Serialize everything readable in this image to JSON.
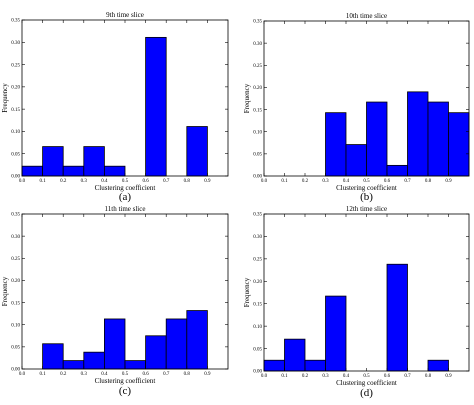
{
  "chart_data": [
    {
      "type": "bar",
      "panel_label": "(a)",
      "title": "9th time slice",
      "xlabel": "Clustering coefficient",
      "ylabel": "Frequency",
      "x_ticks": [
        "0.0",
        "0.1",
        "0.2",
        "0.3",
        "0.4",
        "0.5",
        "0.6",
        "0.7",
        "0.8",
        "0.9"
      ],
      "y_ticks": [
        "0.00",
        "0.05",
        "0.10",
        "0.15",
        "0.20",
        "0.25",
        "0.30",
        "0.35"
      ],
      "bin_edges": [
        0.0,
        0.1,
        0.2,
        0.3,
        0.4,
        0.5,
        0.6,
        0.7,
        0.8,
        0.9,
        1.0
      ],
      "values": [
        0.022,
        0.066,
        0.022,
        0.066,
        0.022,
        0.0,
        0.311,
        0.0,
        0.111,
        0.0
      ],
      "ylim": [
        0,
        0.35
      ],
      "bar_color": "#0000ff"
    },
    {
      "type": "bar",
      "panel_label": "(b)",
      "title": "10th time slice",
      "xlabel": "Clustering coefficient",
      "ylabel": "Frequency",
      "x_ticks": [
        "0.0",
        "0.1",
        "0.2",
        "0.3",
        "0.4",
        "0.5",
        "0.6",
        "0.7",
        "0.8",
        "0.9"
      ],
      "y_ticks": [
        "0.00",
        "0.05",
        "0.10",
        "0.15",
        "0.20",
        "0.25",
        "0.30",
        "0.35"
      ],
      "bin_edges": [
        0.0,
        0.1,
        0.2,
        0.3,
        0.4,
        0.5,
        0.6,
        0.7,
        0.8,
        0.9,
        1.0
      ],
      "values": [
        0.0,
        0.0,
        0.0,
        0.143,
        0.071,
        0.167,
        0.024,
        0.19,
        0.167,
        0.143
      ],
      "ylim": [
        0,
        0.35
      ],
      "bar_color": "#0000ff"
    },
    {
      "type": "bar",
      "panel_label": "(c)",
      "title": "11th time slice",
      "xlabel": "Clustering coefficient",
      "ylabel": "Frequency",
      "x_ticks": [
        "0.0",
        "0.1",
        "0.2",
        "0.3",
        "0.4",
        "0.5",
        "0.6",
        "0.7",
        "0.8",
        "0.9"
      ],
      "y_ticks": [
        "0.00",
        "0.05",
        "0.10",
        "0.15",
        "0.20",
        "0.25",
        "0.30",
        "0.35"
      ],
      "bin_edges": [
        0.0,
        0.1,
        0.2,
        0.3,
        0.4,
        0.5,
        0.6,
        0.7,
        0.8,
        0.9,
        1.0
      ],
      "values": [
        0.0,
        0.057,
        0.019,
        0.038,
        0.113,
        0.019,
        0.075,
        0.113,
        0.132,
        0.0
      ],
      "ylim": [
        0,
        0.35
      ],
      "bar_color": "#0000ff"
    },
    {
      "type": "bar",
      "panel_label": "(d)",
      "title": "12th time slice",
      "xlabel": "Clustering coefficient",
      "ylabel": "Frequency",
      "x_ticks": [
        "0.0",
        "0.1",
        "0.2",
        "0.3",
        "0.4",
        "0.5",
        "0.6",
        "0.7",
        "0.8",
        "0.9"
      ],
      "y_ticks": [
        "0.00",
        "0.05",
        "0.10",
        "0.15",
        "0.20",
        "0.25",
        "0.30",
        "0.35"
      ],
      "bin_edges": [
        0.0,
        0.1,
        0.2,
        0.3,
        0.4,
        0.5,
        0.6,
        0.7,
        0.8,
        0.9,
        1.0
      ],
      "values": [
        0.024,
        0.071,
        0.024,
        0.167,
        0.0,
        0.0,
        0.238,
        0.0,
        0.024,
        0.0
      ],
      "ylim": [
        0,
        0.35
      ],
      "bar_color": "#0000ff"
    }
  ]
}
